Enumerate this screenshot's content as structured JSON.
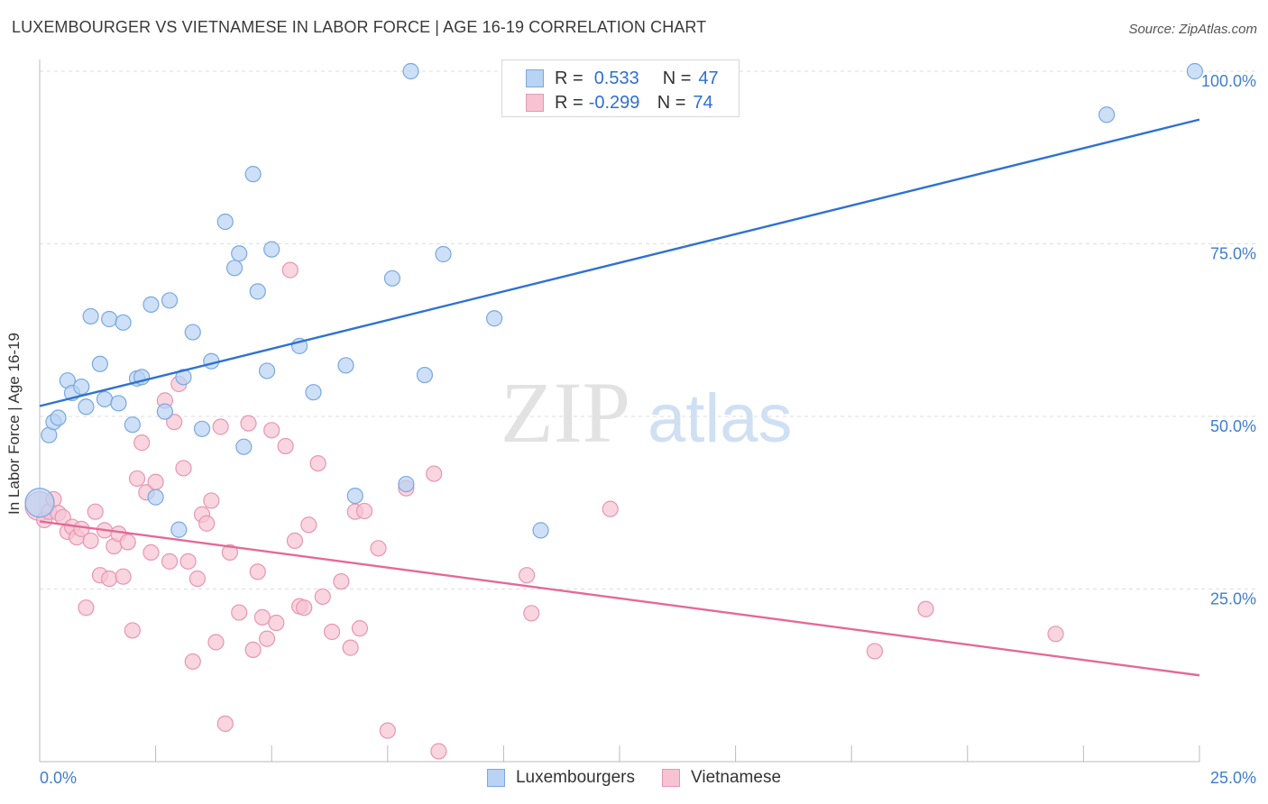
{
  "title": "LUXEMBOURGER VS VIETNAMESE IN LABOR FORCE | AGE 16-19 CORRELATION CHART",
  "source": "Source: ZipAtlas.com",
  "watermark": {
    "zip": "ZIP",
    "atlas": "atlas"
  },
  "legend": {
    "series1": {
      "r_label": "R =",
      "r_value": "0.533",
      "n_label": "N =",
      "n_value": "47"
    },
    "series2": {
      "r_label": "R =",
      "r_value": "-0.299",
      "n_label": "N =",
      "n_value": "74"
    }
  },
  "bottom_legend": [
    "Luxembourgers",
    "Vietnamese"
  ],
  "colors": {
    "blue_fill": "#b8d3f3",
    "blue_stroke": "#7aa8e0",
    "blue_line": "#2f72d0",
    "pink_fill": "#f7c3d3",
    "pink_stroke": "#e796b1",
    "pink_line": "#e56995",
    "axis_text": "#3f7dd3",
    "grid": "#dddddd"
  },
  "chart_data": {
    "type": "scatter",
    "title": "LUXEMBOURGER VS VIETNAMESE IN LABOR FORCE | AGE 16-19 CORRELATION CHART",
    "xlabel": "",
    "ylabel": "In Labor Force | Age 16-19",
    "xlim": [
      0,
      25
    ],
    "ylim": [
      0,
      100
    ],
    "x_tick_labels": [
      "0.0%",
      "25.0%"
    ],
    "y_tick_labels": [
      "25.0%",
      "50.0%",
      "75.0%",
      "100.0%"
    ],
    "y_ticks": [
      25,
      50,
      75,
      100
    ],
    "series": [
      {
        "name": "Luxembourgers",
        "r": 0.533,
        "n": 47,
        "trend": {
          "x": [
            0,
            25
          ],
          "y": [
            51.5,
            93
          ]
        },
        "points": [
          [
            0.0,
            37.5
          ],
          [
            0.2,
            47.3
          ],
          [
            0.3,
            49.2
          ],
          [
            0.4,
            49.8
          ],
          [
            0.6,
            55.2
          ],
          [
            0.7,
            53.4
          ],
          [
            0.9,
            54.3
          ],
          [
            1.0,
            51.4
          ],
          [
            1.1,
            64.5
          ],
          [
            1.3,
            57.6
          ],
          [
            1.4,
            52.5
          ],
          [
            1.5,
            64.1
          ],
          [
            1.7,
            51.9
          ],
          [
            1.8,
            63.6
          ],
          [
            2.0,
            48.8
          ],
          [
            2.1,
            55.5
          ],
          [
            2.2,
            55.7
          ],
          [
            2.4,
            66.2
          ],
          [
            2.5,
            38.3
          ],
          [
            2.7,
            50.7
          ],
          [
            2.8,
            66.8
          ],
          [
            3.0,
            33.6
          ],
          [
            3.1,
            55.7
          ],
          [
            3.3,
            62.2
          ],
          [
            3.5,
            48.2
          ],
          [
            3.7,
            58.0
          ],
          [
            4.0,
            78.2
          ],
          [
            4.2,
            71.5
          ],
          [
            4.3,
            73.6
          ],
          [
            4.4,
            45.6
          ],
          [
            4.6,
            85.1
          ],
          [
            4.7,
            68.1
          ],
          [
            4.9,
            56.6
          ],
          [
            5.0,
            74.2
          ],
          [
            5.6,
            60.2
          ],
          [
            5.9,
            53.5
          ],
          [
            6.6,
            57.4
          ],
          [
            6.8,
            38.5
          ],
          [
            7.6,
            70.0
          ],
          [
            7.9,
            40.2
          ],
          [
            8.0,
            100.0
          ],
          [
            8.3,
            56.0
          ],
          [
            8.7,
            73.5
          ],
          [
            9.8,
            64.2
          ],
          [
            10.8,
            33.5
          ],
          [
            23.0,
            93.7
          ],
          [
            24.9,
            100.0
          ]
        ]
      },
      {
        "name": "Vietnamese",
        "r": -0.299,
        "n": 74,
        "trend": {
          "x": [
            0,
            25
          ],
          "y": [
            34.8,
            12.5
          ]
        },
        "points": [
          [
            0.0,
            37.0
          ],
          [
            0.1,
            35.0
          ],
          [
            0.2,
            36.2
          ],
          [
            0.3,
            38.0
          ],
          [
            0.4,
            36.0
          ],
          [
            0.5,
            35.4
          ],
          [
            0.6,
            33.3
          ],
          [
            0.7,
            34.0
          ],
          [
            0.8,
            32.5
          ],
          [
            0.9,
            33.7
          ],
          [
            1.0,
            22.3
          ],
          [
            1.1,
            32.0
          ],
          [
            1.2,
            36.2
          ],
          [
            1.3,
            27.0
          ],
          [
            1.4,
            33.5
          ],
          [
            1.5,
            26.5
          ],
          [
            1.6,
            31.2
          ],
          [
            1.7,
            33.0
          ],
          [
            1.8,
            26.8
          ],
          [
            1.9,
            31.8
          ],
          [
            2.0,
            19.0
          ],
          [
            2.1,
            41.0
          ],
          [
            2.2,
            46.2
          ],
          [
            2.3,
            39.0
          ],
          [
            2.4,
            30.3
          ],
          [
            2.5,
            40.5
          ],
          [
            2.7,
            52.3
          ],
          [
            2.8,
            29.0
          ],
          [
            2.9,
            49.2
          ],
          [
            3.0,
            54.7
          ],
          [
            3.1,
            42.5
          ],
          [
            3.2,
            29.0
          ],
          [
            3.3,
            14.5
          ],
          [
            3.4,
            26.5
          ],
          [
            3.5,
            35.8
          ],
          [
            3.6,
            34.5
          ],
          [
            3.7,
            37.8
          ],
          [
            3.8,
            17.3
          ],
          [
            3.9,
            48.5
          ],
          [
            4.0,
            5.5
          ],
          [
            4.1,
            30.3
          ],
          [
            4.3,
            21.6
          ],
          [
            4.5,
            49.0
          ],
          [
            4.6,
            16.2
          ],
          [
            4.7,
            27.5
          ],
          [
            4.8,
            20.9
          ],
          [
            4.9,
            17.8
          ],
          [
            5.0,
            48.0
          ],
          [
            5.1,
            20.1
          ],
          [
            5.3,
            45.7
          ],
          [
            5.4,
            71.2
          ],
          [
            5.5,
            32.0
          ],
          [
            5.6,
            22.5
          ],
          [
            5.7,
            22.3
          ],
          [
            5.8,
            34.3
          ],
          [
            6.0,
            43.2
          ],
          [
            6.1,
            23.9
          ],
          [
            6.3,
            18.8
          ],
          [
            6.5,
            26.1
          ],
          [
            6.7,
            16.5
          ],
          [
            6.8,
            36.2
          ],
          [
            6.9,
            19.3
          ],
          [
            7.0,
            36.3
          ],
          [
            7.3,
            30.9
          ],
          [
            7.5,
            4.5
          ],
          [
            8.5,
            41.7
          ],
          [
            8.6,
            1.5
          ],
          [
            10.5,
            27.0
          ],
          [
            10.6,
            21.5
          ],
          [
            12.3,
            36.6
          ],
          [
            18.0,
            16.0
          ],
          [
            19.1,
            22.1
          ],
          [
            21.9,
            18.5
          ],
          [
            7.9,
            39.6
          ]
        ]
      }
    ],
    "grid": true,
    "legend_position": "top-center"
  }
}
